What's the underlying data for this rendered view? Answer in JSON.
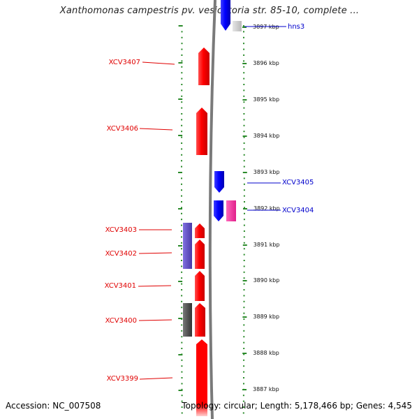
{
  "title": "Xanthomonas campestris pv. vesicatoria str. 85-10, complete ...",
  "footer": {
    "accession": "Accession: NC_007508",
    "summary": "Topology: circular; Length: 5,178,466 bp; Genes: 4,545"
  },
  "colors": {
    "forward_gene": "#ee0000",
    "reverse_gene": "#0000ee",
    "pink_feature": "#ff3399",
    "violet_feature": "#6a5acd",
    "dark_feature": "#555555",
    "ruler_green": "#2a8a2a",
    "backbone_gray": "#808080"
  },
  "ruler": {
    "ticks": [
      {
        "label": "3897 kbp"
      },
      {
        "label": "3896 kbp"
      },
      {
        "label": "3895 kbp"
      },
      {
        "label": "3894 kbp"
      },
      {
        "label": "3893 kbp"
      },
      {
        "label": "3892 kbp"
      },
      {
        "label": "3891 kbp"
      },
      {
        "label": "3890 kbp"
      },
      {
        "label": "3889 kbp"
      },
      {
        "label": "3888 kbp"
      },
      {
        "label": "3887 kbp"
      }
    ]
  },
  "genes": {
    "left": [
      {
        "label": "XCV3407"
      },
      {
        "label": "XCV3406"
      },
      {
        "label": "XCV3403"
      },
      {
        "label": "XCV3402"
      },
      {
        "label": "XCV3401"
      },
      {
        "label": "XCV3400"
      },
      {
        "label": "XCV3399"
      }
    ],
    "right": [
      {
        "label": "hns3"
      },
      {
        "label": "XCV3405"
      },
      {
        "label": "XCV3404"
      }
    ]
  }
}
